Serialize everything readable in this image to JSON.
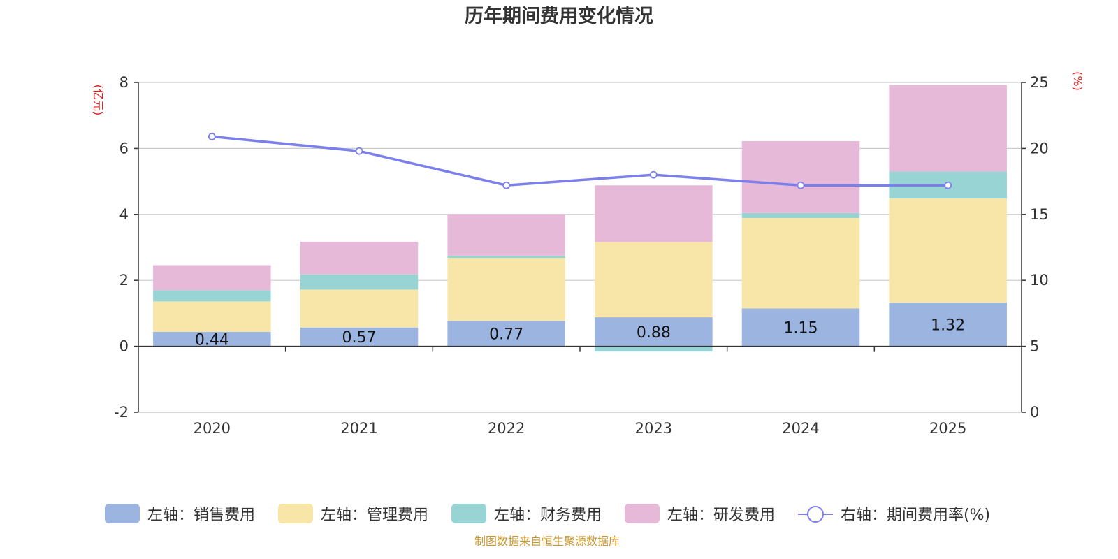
{
  "chart_data": {
    "type": "bar",
    "stacked": true,
    "title": "历年期间费用变化情况",
    "categories": [
      "2020",
      "2021",
      "2022",
      "2023",
      "2024",
      "2025"
    ],
    "left_axis": {
      "unit": "(亿元)",
      "ylim": [
        -2,
        8
      ],
      "ticks": [
        "-2",
        "0",
        "2",
        "4",
        "6",
        "8"
      ],
      "tick_values": [
        -2,
        0,
        2,
        4,
        6,
        8
      ]
    },
    "right_axis": {
      "unit": "(%)",
      "ylim": [
        0,
        25
      ],
      "ticks": [
        "0",
        "5",
        "10",
        "15",
        "20",
        "25"
      ],
      "tick_values": [
        0,
        5,
        10,
        15,
        20,
        25
      ]
    },
    "grid": true,
    "legend_position": "bottom",
    "series": [
      {
        "name": "左轴：销售费用",
        "axis": "left",
        "kind": "bar",
        "color": "#9bb5e0",
        "values": [
          0.44,
          0.57,
          0.77,
          0.88,
          1.15,
          1.32
        ],
        "labels": [
          "0.44",
          "0.57",
          "0.77",
          "0.88",
          "1.15",
          "1.32"
        ]
      },
      {
        "name": "左轴：管理费用",
        "axis": "left",
        "kind": "bar",
        "color": "#f7e6a8",
        "values": [
          0.92,
          1.15,
          1.91,
          2.28,
          2.74,
          3.16
        ]
      },
      {
        "name": "左轴：财务费用",
        "axis": "left",
        "kind": "bar",
        "color": "#98d4d4",
        "values": [
          0.34,
          0.46,
          0.07,
          -0.16,
          0.15,
          0.82
        ]
      },
      {
        "name": "左轴：研发费用",
        "axis": "left",
        "kind": "bar",
        "color": "#e7b9d8",
        "values": [
          0.76,
          0.99,
          1.26,
          1.72,
          2.18,
          2.62
        ]
      },
      {
        "name": "右轴：期间费用率(%)",
        "axis": "right",
        "kind": "line",
        "color": "#7b7fea",
        "values": [
          20.9,
          19.8,
          17.2,
          18.0,
          17.2,
          17.2
        ]
      }
    ]
  },
  "footer": {
    "source": "制图数据来自恒生聚源数据库",
    "source_color": "#c9962a"
  },
  "colors": {
    "unit_red": "#e02020",
    "axis": "#333333",
    "grid": "#cccccc"
  }
}
